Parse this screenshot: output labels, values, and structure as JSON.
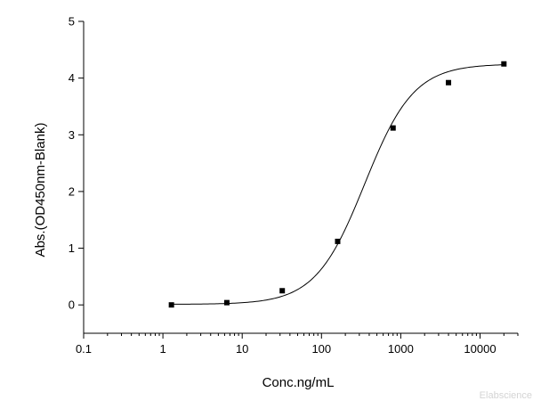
{
  "chart_data": {
    "type": "scatter",
    "xlabel": "Conc.ng/mL",
    "ylabel": "Abs.(OD450nm-Blank)",
    "x_scale": "log",
    "xlim": [
      0.1,
      30000
    ],
    "ylim": [
      -0.5,
      5
    ],
    "x_ticks": [
      0.1,
      1,
      10,
      100,
      1000,
      10000
    ],
    "x_tick_labels": [
      "0.1",
      "1",
      "10",
      "100",
      "1000",
      "10000"
    ],
    "y_ticks": [
      0,
      1,
      2,
      3,
      4,
      5
    ],
    "y_tick_labels": [
      "0",
      "1",
      "2",
      "3",
      "4",
      "5"
    ],
    "grid": false,
    "series": [
      {
        "marker": "square",
        "color": "#000000",
        "points": [
          {
            "x": 1.28,
            "y": 0.0
          },
          {
            "x": 6.4,
            "y": 0.04
          },
          {
            "x": 32,
            "y": 0.25
          },
          {
            "x": 160,
            "y": 1.12
          },
          {
            "x": 800,
            "y": 3.12
          },
          {
            "x": 4000,
            "y": 3.92
          },
          {
            "x": 20000,
            "y": 4.25
          }
        ]
      }
    ],
    "fit_curve": {
      "type": "4PL",
      "bottom": 0.01,
      "top": 4.25,
      "ec50": 350,
      "hill": 1.4,
      "x_range": [
        1.28,
        20000
      ],
      "color": "#000000"
    }
  },
  "watermark": "Elabscience"
}
